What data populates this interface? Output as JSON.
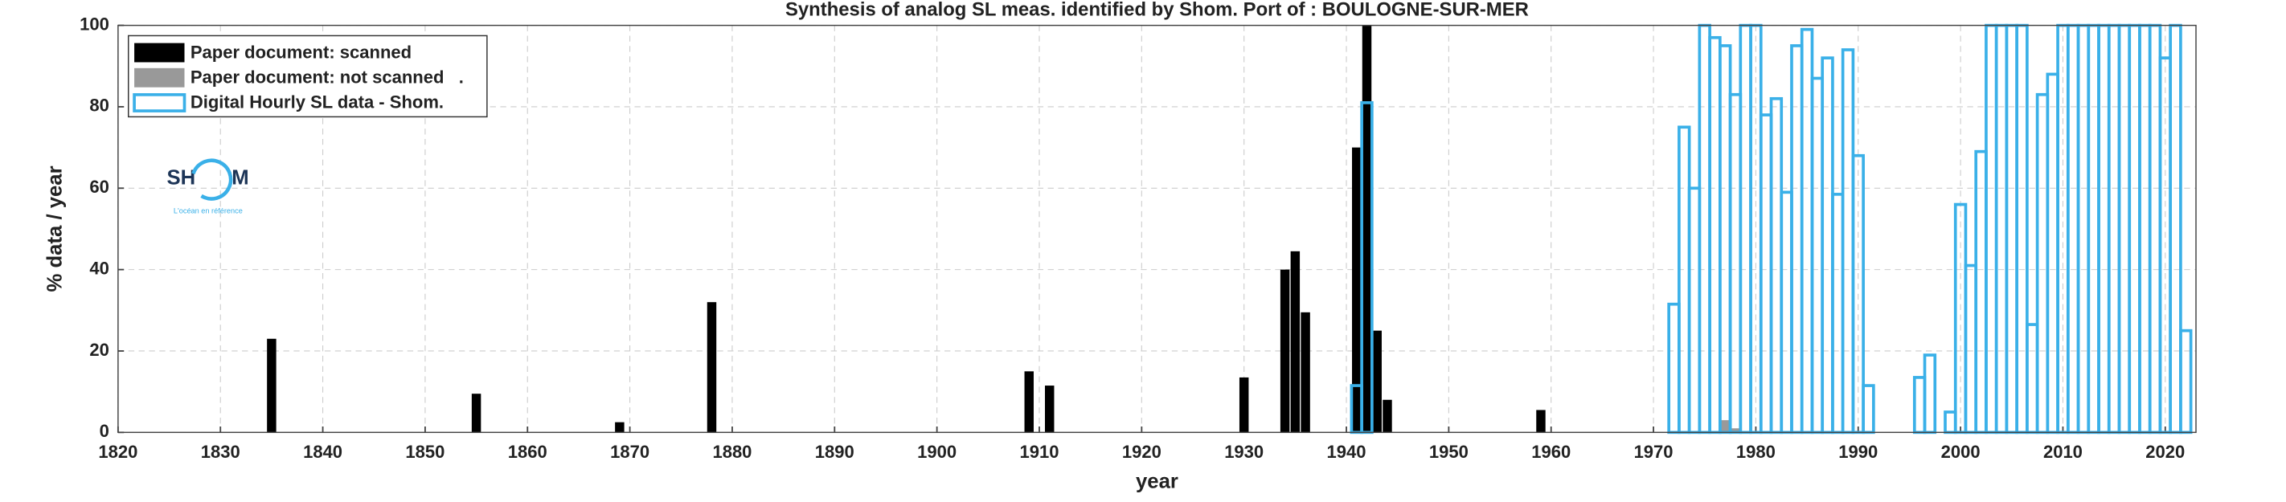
{
  "chart_data": {
    "type": "bar",
    "title": "Synthesis of analog SL meas. identified by Shom. Port of : BOULOGNE-SUR-MER",
    "x_label": "year",
    "y_label": "% data / year",
    "xlim": [
      1820,
      2023
    ],
    "ylim": [
      0,
      100
    ],
    "xticks": [
      1820,
      1830,
      1840,
      1850,
      1860,
      1870,
      1880,
      1890,
      1900,
      1910,
      1920,
      1930,
      1940,
      1950,
      1960,
      1970,
      1980,
      1990,
      2000,
      2010,
      2020
    ],
    "yticks": [
      0,
      20,
      40,
      60,
      80,
      100
    ],
    "grid": true,
    "legend": "upper-left",
    "logo": {
      "left": "SH",
      "right": "M",
      "tagline": "L'océan en référence"
    },
    "series": [
      {
        "name": "Paper document: scanned",
        "color": "#000000",
        "style": "filled",
        "x": [
          1835,
          1855,
          1869,
          1878,
          1909,
          1911,
          1930,
          1934,
          1935,
          1936,
          1941,
          1942,
          1943,
          1944,
          1959
        ],
        "values": [
          23,
          9.5,
          2.5,
          32,
          15,
          11.5,
          13.5,
          40,
          44.5,
          29.5,
          70,
          100,
          25,
          8,
          5.5
        ]
      },
      {
        "name": "Paper document: not scanned   .",
        "color": "#999999",
        "style": "filled",
        "x": [
          1977,
          1978
        ],
        "values": [
          3,
          1
        ]
      },
      {
        "name": "Digital Hourly SL data - Shom.",
        "color": "#3ab0e8",
        "style": "outline",
        "x": [
          1941,
          1942,
          1972,
          1973,
          1974,
          1975,
          1976,
          1977,
          1978,
          1979,
          1980,
          1981,
          1982,
          1983,
          1984,
          1985,
          1986,
          1987,
          1988,
          1989,
          1990,
          1991,
          1996,
          1997,
          1999,
          2000,
          2001,
          2002,
          2003,
          2004,
          2005,
          2006,
          2007,
          2008,
          2009,
          2010,
          2011,
          2012,
          2013,
          2014,
          2015,
          2016,
          2017,
          2018,
          2019,
          2020,
          2021,
          2022
        ],
        "values": [
          11.5,
          81,
          31.5,
          75,
          60,
          100,
          97,
          95,
          83,
          100,
          100,
          78,
          82,
          59,
          95,
          99,
          87,
          92,
          58.5,
          94,
          68,
          11.5,
          13.5,
          19,
          5,
          56,
          41,
          69,
          100,
          100,
          100,
          100,
          26.5,
          83,
          88,
          100,
          100,
          100,
          100,
          100,
          100,
          100,
          100,
          100,
          100,
          92,
          100,
          25
        ]
      }
    ]
  }
}
